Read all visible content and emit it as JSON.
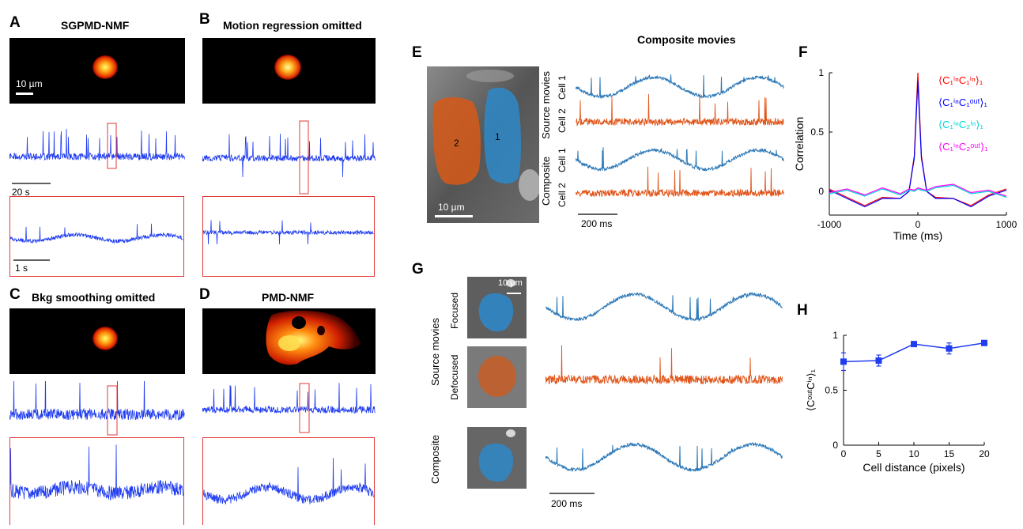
{
  "panels": {
    "A": {
      "letter": "A",
      "title": "SGPMD-NMF",
      "scalebar": "10 µm",
      "time_scale": "20 s",
      "zoom_scale": "1 s"
    },
    "B": {
      "letter": "B",
      "title": "Motion regression omitted"
    },
    "C": {
      "letter": "C",
      "title": "Bkg smoothing omitted"
    },
    "D": {
      "letter": "D",
      "title": "PMD-NMF"
    },
    "E": {
      "letter": "E",
      "heading": "Composite movies",
      "cell1": "1",
      "cell2": "2",
      "scalebar": "10 µm",
      "group_source": "Source movies",
      "group_composite": "Composite",
      "row_cell1": "Cell 1",
      "row_cell2": "Cell 2",
      "time_scale": "200 ms"
    },
    "F": {
      "letter": "F"
    },
    "G": {
      "letter": "G",
      "scalebar": "10 µm",
      "group_source": "Source movies",
      "row_focused": "Focused",
      "row_defocused": "Defocused",
      "group_composite": "Composite",
      "time_scale": "200 ms"
    },
    "H": {
      "letter": "H"
    }
  },
  "colors": {
    "trace_blue": "#1f3cf0",
    "steel": "#2f7ab8",
    "orange": "#e0561b",
    "red_box": "#e23a3a",
    "red": "#ff0000",
    "blue": "#0000ff",
    "cyan": "#00d5d5",
    "magenta": "#ff00ff"
  },
  "chart_data": [
    {
      "type": "line",
      "panel": "F",
      "xlabel": "Time (ms)",
      "ylabel": "Correlation",
      "xlim": [
        -1000,
        1000
      ],
      "ylim": [
        -0.2,
        1.0
      ],
      "xticks": [
        -1000,
        0,
        1000
      ],
      "yticks": [
        0,
        0.5,
        1
      ],
      "x": [
        -1000,
        -800,
        -600,
        -400,
        -200,
        -100,
        -40,
        0,
        40,
        100,
        200,
        400,
        600,
        800,
        1000
      ],
      "series": [
        {
          "name": "⟨C₁ⁱⁿC₁ⁱⁿ⟩₁",
          "color": "#ff0000",
          "values": [
            0.02,
            -0.05,
            -0.12,
            -0.05,
            -0.06,
            0.0,
            0.3,
            1.0,
            0.3,
            0.0,
            -0.05,
            -0.06,
            -0.12,
            -0.03,
            0.02
          ]
        },
        {
          "name": "⟨C₁ⁱⁿC₁ᵒᵘᵗ⟩₁",
          "color": "#0000ff",
          "values": [
            0.01,
            -0.06,
            -0.13,
            -0.06,
            -0.06,
            0.0,
            0.28,
            0.93,
            0.28,
            0.0,
            -0.06,
            -0.06,
            -0.13,
            -0.04,
            0.01
          ]
        },
        {
          "name": "⟨C₁ⁱⁿC₂ⁱⁿ⟩₁",
          "color": "#00d5d5",
          "values": [
            -0.02,
            0.01,
            -0.04,
            0.02,
            -0.03,
            0.01,
            0.0,
            0.02,
            0.01,
            0.0,
            0.03,
            0.05,
            -0.02,
            0.0,
            -0.05
          ]
        },
        {
          "name": "⟨C₁ⁱⁿC₂ᵒᵘᵗ⟩₁",
          "color": "#ff00ff",
          "values": [
            -0.01,
            0.02,
            -0.03,
            0.03,
            -0.02,
            0.02,
            0.01,
            0.03,
            0.02,
            0.01,
            0.04,
            0.06,
            -0.01,
            0.01,
            -0.04
          ]
        }
      ]
    },
    {
      "type": "line",
      "panel": "H",
      "xlabel": "Cell distance (pixels)",
      "ylabel": "⟨CᵒᵘᵗCⁱⁿ⟩₁",
      "xlim": [
        0,
        20
      ],
      "ylim": [
        0,
        1
      ],
      "xticks": [
        0,
        5,
        10,
        15,
        20
      ],
      "yticks": [
        0,
        0.5,
        1
      ],
      "x": [
        0,
        5,
        10,
        15,
        20
      ],
      "values": [
        0.76,
        0.77,
        0.92,
        0.88,
        0.93
      ],
      "errors": [
        0.08,
        0.05,
        0.01,
        0.05,
        0.01
      ]
    }
  ]
}
